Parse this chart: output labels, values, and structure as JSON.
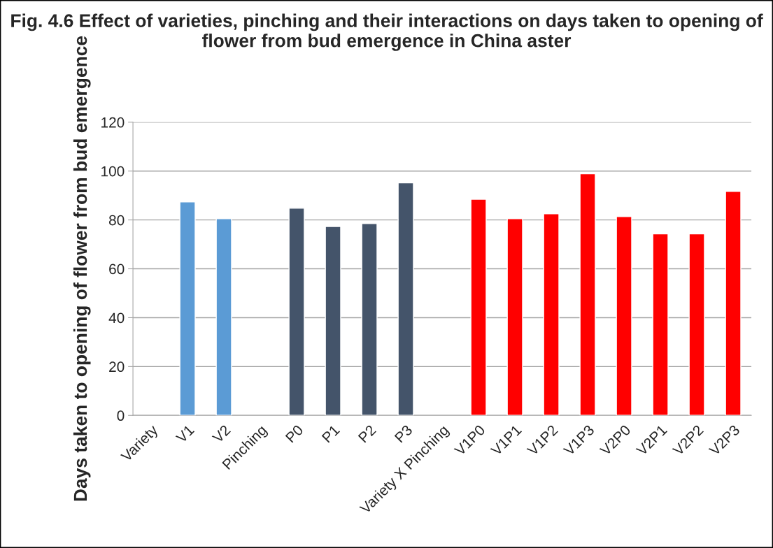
{
  "chart_data": {
    "type": "bar",
    "title": "Fig. 4.6 Effect of varieties, pinching and their interactions on days taken to opening of flower from bud emergence in China aster",
    "ylabel": "Days taken to opening of flower from bud emergence",
    "categories": [
      "Variety",
      "V1",
      "V2",
      "Pinching",
      "P0",
      "P1",
      "P2",
      "P3",
      "Variety X Pinching",
      "V1P0",
      "V1P1",
      "V1P2",
      "V1P3",
      "V2P0",
      "V2P1",
      "V2P2",
      "V2P3"
    ],
    "values": [
      null,
      87.4,
      80.5,
      null,
      84.8,
      77.3,
      78.5,
      95.2,
      null,
      88.5,
      80.5,
      82.5,
      98.9,
      81.4,
      74.3,
      74.3,
      91.7
    ],
    "colors": [
      "#5b9bd5",
      "#5b9bd5",
      "#5b9bd5",
      "#44546a",
      "#44546a",
      "#44546a",
      "#44546a",
      "#44546a",
      "#ff0000",
      "#ff0000",
      "#ff0000",
      "#ff0000",
      "#ff0000",
      "#ff0000",
      "#ff0000",
      "#ff0000",
      "#ff0000"
    ],
    "ylim": [
      0,
      120
    ],
    "yticks": [
      0,
      20,
      40,
      60,
      80,
      100,
      120
    ],
    "grid": "y",
    "legend": false
  }
}
